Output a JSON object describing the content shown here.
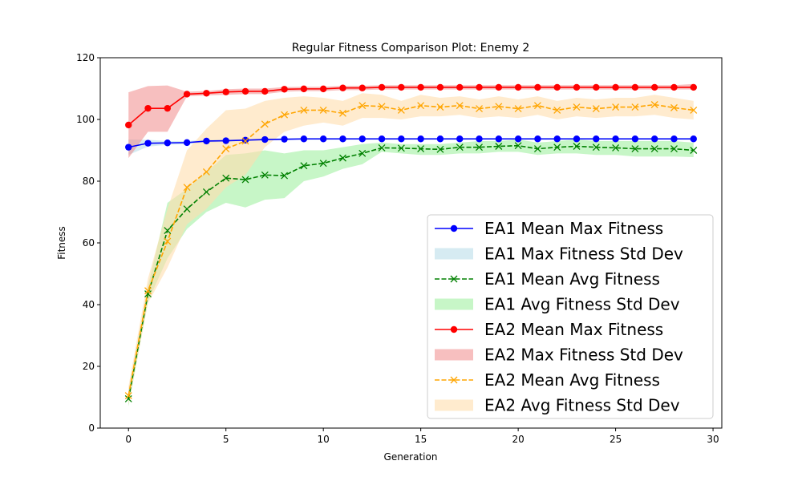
{
  "chart_data": {
    "type": "line",
    "title": "Regular Fitness Comparison Plot: Enemy 2",
    "xlabel": "Generation",
    "ylabel": "Fitness",
    "xlim": [
      -1.45,
      30.45
    ],
    "ylim": [
      0,
      120
    ],
    "xticks": [
      0,
      5,
      10,
      15,
      20,
      25,
      30
    ],
    "yticks": [
      0,
      20,
      40,
      60,
      80,
      100,
      120
    ],
    "grid": false,
    "legend_position": "lower-right",
    "x": [
      0,
      1,
      2,
      3,
      4,
      5,
      6,
      7,
      8,
      9,
      10,
      11,
      12,
      13,
      14,
      15,
      16,
      17,
      18,
      19,
      20,
      21,
      22,
      23,
      24,
      25,
      26,
      27,
      28,
      29
    ],
    "series": [
      {
        "name": "EA1 Mean Max Fitness",
        "kind": "line",
        "color": "#0000ff",
        "linestyle": "solid",
        "marker": "circle",
        "values": [
          91.0,
          92.3,
          92.4,
          92.5,
          93.0,
          93.1,
          93.3,
          93.5,
          93.6,
          93.7,
          93.7,
          93.7,
          93.7,
          93.7,
          93.7,
          93.7,
          93.7,
          93.7,
          93.7,
          93.7,
          93.7,
          93.7,
          93.7,
          93.7,
          93.7,
          93.7,
          93.7,
          93.7,
          93.7,
          93.7
        ]
      },
      {
        "name": "EA1 Max Fitness Std Dev",
        "kind": "band",
        "color": "#add8e6",
        "opacity": 0.5,
        "lower": [
          88.5,
          91.2,
          91.8,
          92.0,
          92.5,
          92.7,
          93.0,
          93.2,
          93.3,
          93.4,
          93.4,
          93.4,
          93.4,
          93.4,
          93.4,
          93.4,
          93.4,
          93.4,
          93.4,
          93.4,
          93.4,
          93.4,
          93.4,
          93.4,
          93.4,
          93.4,
          93.4,
          93.4,
          93.4,
          93.4
        ],
        "upper": [
          93.5,
          93.4,
          93.0,
          93.0,
          93.5,
          93.5,
          93.6,
          93.8,
          93.9,
          94.0,
          94.0,
          94.0,
          94.0,
          94.0,
          94.0,
          94.0,
          94.0,
          94.0,
          94.0,
          94.0,
          94.0,
          94.0,
          94.0,
          94.0,
          94.0,
          94.0,
          94.0,
          94.0,
          94.0,
          94.0
        ]
      },
      {
        "name": "EA1 Mean Avg Fitness",
        "kind": "line",
        "color": "#008000",
        "linestyle": "dashed",
        "marker": "x",
        "values": [
          9.5,
          43.5,
          64.0,
          71.0,
          76.5,
          81.0,
          80.5,
          82.0,
          81.8,
          85.0,
          85.8,
          87.5,
          89.0,
          90.8,
          90.7,
          90.5,
          90.3,
          91.0,
          91.0,
          91.3,
          91.5,
          90.5,
          91.0,
          91.3,
          91.0,
          90.8,
          90.5,
          90.5,
          90.5,
          90.0
        ]
      },
      {
        "name": "EA1 Avg Fitness Std Dev",
        "kind": "band",
        "color": "#90ee90",
        "opacity": 0.5,
        "lower": [
          7.0,
          41.0,
          55.0,
          64.5,
          70.0,
          73.0,
          71.5,
          74.0,
          74.5,
          80.0,
          81.5,
          84.0,
          85.5,
          89.5,
          89.0,
          88.5,
          88.5,
          89.0,
          89.0,
          89.5,
          89.5,
          88.5,
          89.0,
          89.0,
          88.5,
          88.5,
          88.0,
          88.0,
          88.0,
          87.8
        ],
        "upper": [
          12.0,
          46.0,
          73.0,
          77.5,
          83.0,
          88.5,
          89.0,
          90.0,
          89.0,
          90.0,
          90.0,
          91.0,
          92.0,
          92.5,
          92.0,
          92.0,
          92.0,
          92.5,
          93.0,
          93.0,
          93.5,
          92.5,
          93.0,
          93.5,
          93.0,
          93.0,
          93.0,
          93.0,
          93.0,
          92.5
        ]
      },
      {
        "name": "EA2 Mean Max Fitness",
        "kind": "line",
        "color": "#ff0000",
        "linestyle": "solid",
        "marker": "circle",
        "values": [
          98.2,
          103.6,
          103.6,
          108.2,
          108.5,
          108.9,
          109.1,
          109.1,
          109.8,
          109.9,
          109.9,
          110.2,
          110.2,
          110.4,
          110.4,
          110.4,
          110.4,
          110.4,
          110.4,
          110.4,
          110.4,
          110.4,
          110.4,
          110.4,
          110.4,
          110.4,
          110.4,
          110.4,
          110.4,
          110.4
        ]
      },
      {
        "name": "EA2 Max Fitness Std Dev",
        "kind": "band",
        "color": "#f08080",
        "opacity": 0.5,
        "lower": [
          87.5,
          96.0,
          96.0,
          107.5,
          107.8,
          108.0,
          108.2,
          108.2,
          109.0,
          109.2,
          109.2,
          109.5,
          109.5,
          109.7,
          109.7,
          109.7,
          109.7,
          109.7,
          109.7,
          109.7,
          109.7,
          109.7,
          109.7,
          109.7,
          109.7,
          109.7,
          109.7,
          109.7,
          109.7,
          109.7
        ],
        "upper": [
          108.8,
          110.8,
          111.0,
          109.0,
          109.2,
          109.8,
          110.0,
          110.0,
          110.5,
          110.6,
          110.6,
          110.9,
          110.9,
          111.1,
          111.1,
          111.1,
          111.1,
          111.1,
          111.1,
          111.1,
          111.1,
          111.1,
          111.1,
          111.1,
          111.1,
          111.1,
          111.1,
          111.1,
          111.1,
          111.5
        ]
      },
      {
        "name": "EA2 Mean Avg Fitness",
        "kind": "line",
        "color": "#ffa500",
        "linestyle": "dashed",
        "marker": "x",
        "values": [
          10.5,
          44.5,
          60.5,
          78.0,
          83.0,
          90.5,
          93.0,
          98.5,
          101.5,
          103.0,
          103.0,
          102.0,
          104.5,
          104.2,
          103.0,
          104.5,
          104.0,
          104.5,
          103.5,
          104.2,
          103.5,
          104.5,
          103.0,
          104.0,
          103.5,
          104.0,
          104.0,
          104.8,
          103.8,
          103.0
        ]
      },
      {
        "name": "EA2 Avg Fitness Std Dev",
        "kind": "band",
        "color": "#ffdead",
        "opacity": 0.6,
        "lower": [
          7.5,
          40.5,
          52.0,
          66.0,
          71.0,
          78.0,
          82.0,
          91.0,
          96.0,
          98.0,
          99.0,
          98.0,
          100.5,
          100.5,
          100.0,
          101.0,
          101.0,
          101.5,
          100.5,
          101.0,
          100.5,
          101.5,
          100.0,
          101.0,
          100.5,
          101.0,
          101.0,
          101.5,
          100.5,
          100.0
        ],
        "upper": [
          13.5,
          48.5,
          71.0,
          90.0,
          97.0,
          103.0,
          103.5,
          106.0,
          107.0,
          107.5,
          107.0,
          106.0,
          108.5,
          108.0,
          106.0,
          108.0,
          107.0,
          107.5,
          106.5,
          107.5,
          106.5,
          107.5,
          106.0,
          107.0,
          106.5,
          107.0,
          107.0,
          108.0,
          107.0,
          106.0
        ]
      }
    ]
  }
}
